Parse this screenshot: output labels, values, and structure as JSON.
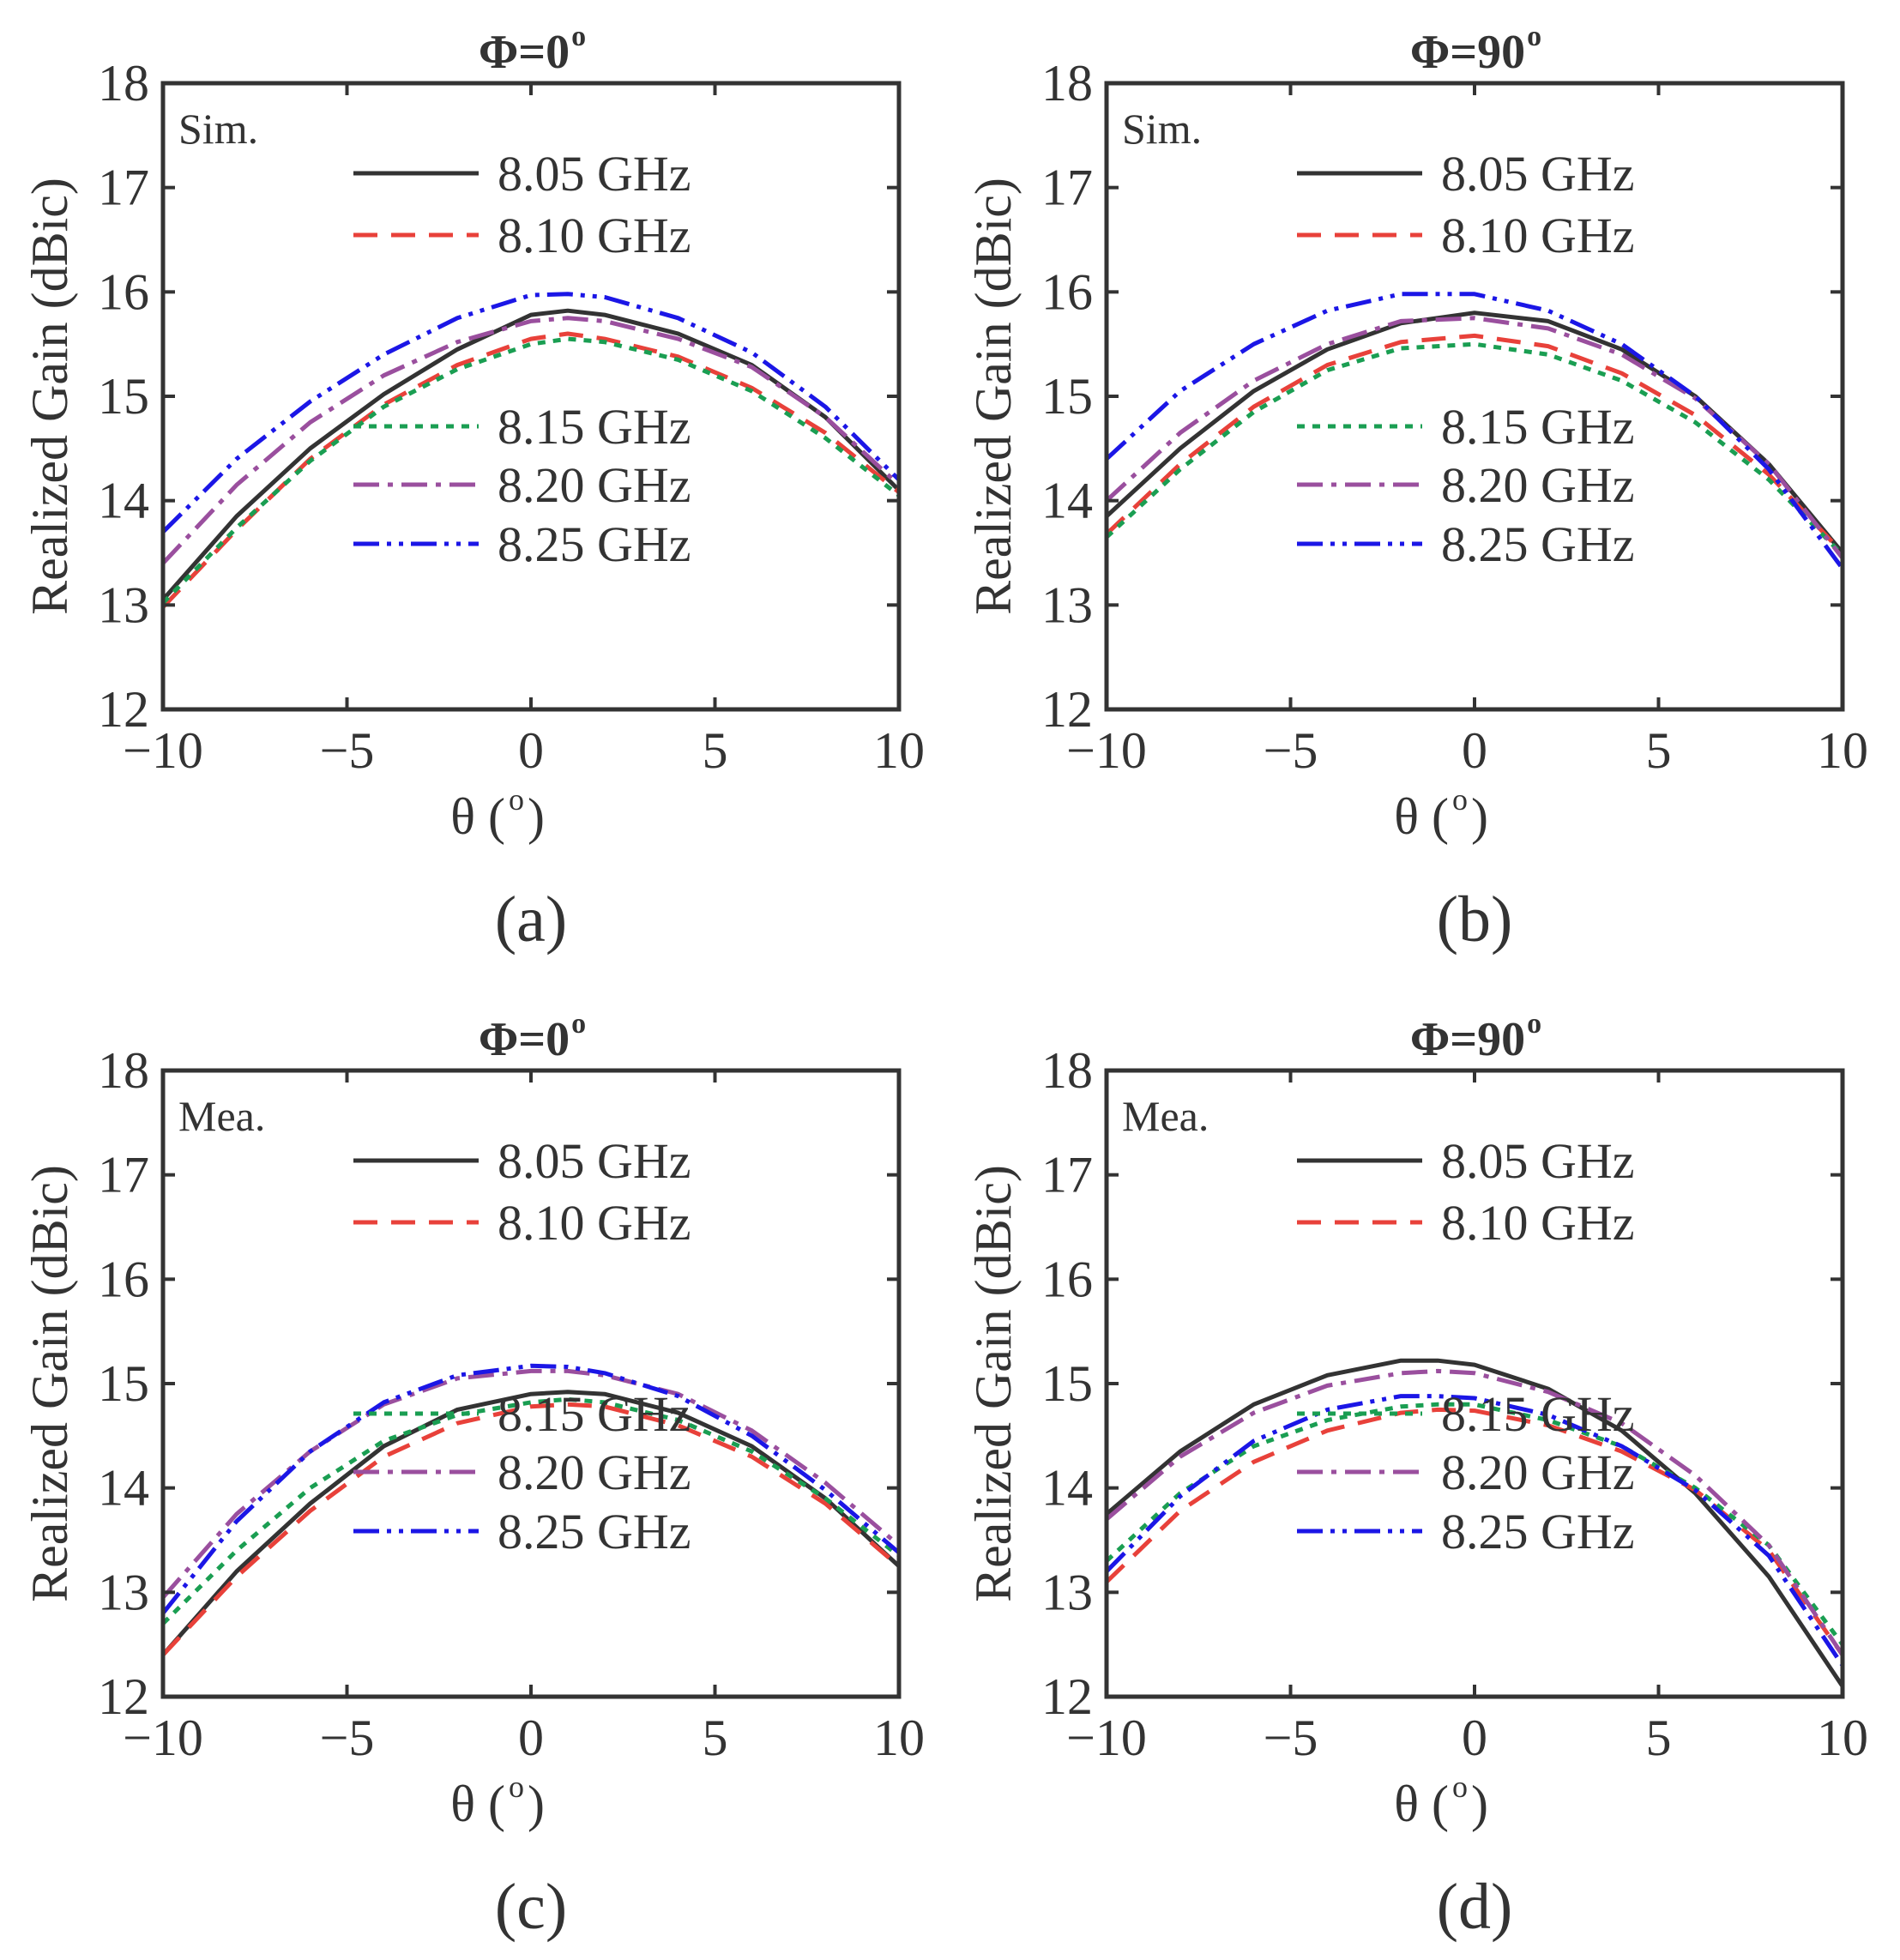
{
  "colors": {
    "s805": "#333333",
    "s810": "#e8413a",
    "s815": "#1a9e52",
    "s820": "#9a4f9e",
    "s825": "#1b16e6",
    "axis": "#333333"
  },
  "chart_data": [
    {
      "type": "line",
      "title": "Φ=0°",
      "title_main": "Φ=0",
      "title_deg": "o",
      "caption": "(a)",
      "tag": "Sim.",
      "xlabel": "θ (°)",
      "xlabel_main": "θ (",
      "xlabel_deg": "o",
      "xlabel_close": ")",
      "ylabel": "Realized Gain (dBic)",
      "xlim": [
        -10,
        10
      ],
      "ylim": [
        12,
        18
      ],
      "xticks": [
        "−10",
        "−5",
        "0",
        "5",
        "10"
      ],
      "yticks": [
        "12",
        "13",
        "14",
        "15",
        "16",
        "17",
        "18"
      ],
      "x": [
        -10,
        -8,
        -6,
        -4,
        -2,
        0,
        1,
        2,
        4,
        6,
        8,
        10
      ],
      "series": [
        {
          "name": "8.05 GHz",
          "style": "solid",
          "values": [
            13.05,
            13.85,
            14.5,
            15.02,
            15.45,
            15.78,
            15.82,
            15.78,
            15.6,
            15.3,
            14.8,
            14.1
          ]
        },
        {
          "name": "8.10 GHz",
          "style": "dashed",
          "values": [
            12.98,
            13.72,
            14.4,
            14.92,
            15.3,
            15.55,
            15.6,
            15.55,
            15.38,
            15.08,
            14.65,
            14.08
          ]
        },
        {
          "name": "8.15 GHz",
          "style": "dotted",
          "values": [
            13.02,
            13.74,
            14.38,
            14.9,
            15.26,
            15.5,
            15.55,
            15.52,
            15.35,
            15.05,
            14.6,
            14.05
          ]
        },
        {
          "name": "8.20 GHz",
          "style": "dashdot",
          "values": [
            13.4,
            14.15,
            14.75,
            15.2,
            15.52,
            15.72,
            15.75,
            15.72,
            15.55,
            15.28,
            14.8,
            14.15
          ]
        },
        {
          "name": "8.25 GHz",
          "style": "dashdotdot",
          "values": [
            13.7,
            14.4,
            14.95,
            15.4,
            15.75,
            15.97,
            15.98,
            15.95,
            15.75,
            15.42,
            14.9,
            14.2
          ]
        }
      ]
    },
    {
      "type": "line",
      "title": "Φ=90°",
      "title_main": "Φ=90",
      "title_deg": "o",
      "caption": "(b)",
      "tag": "Sim.",
      "xlabel": "θ (°)",
      "xlabel_main": "θ (",
      "xlabel_deg": "o",
      "xlabel_close": ")",
      "ylabel": "Realized Gain (dBic)",
      "xlim": [
        -10,
        10
      ],
      "ylim": [
        12,
        18
      ],
      "xticks": [
        "−10",
        "−5",
        "0",
        "5",
        "10"
      ],
      "yticks": [
        "12",
        "13",
        "14",
        "15",
        "16",
        "17",
        "18"
      ],
      "x": [
        -10,
        -8,
        -6,
        -4,
        -2,
        0,
        2,
        4,
        6,
        8,
        10
      ],
      "series": [
        {
          "name": "8.05 GHz",
          "style": "solid",
          "values": [
            13.85,
            14.5,
            15.05,
            15.45,
            15.7,
            15.8,
            15.72,
            15.45,
            15.0,
            14.35,
            13.5
          ]
        },
        {
          "name": "8.10 GHz",
          "style": "dashed",
          "values": [
            13.68,
            14.35,
            14.9,
            15.3,
            15.52,
            15.58,
            15.48,
            15.22,
            14.82,
            14.25,
            13.5
          ]
        },
        {
          "name": "8.15 GHz",
          "style": "dotted",
          "values": [
            13.65,
            14.3,
            14.85,
            15.25,
            15.46,
            15.5,
            15.4,
            15.15,
            14.75,
            14.2,
            13.48
          ]
        },
        {
          "name": "8.20 GHz",
          "style": "dashdot",
          "values": [
            14.0,
            14.65,
            15.15,
            15.5,
            15.72,
            15.75,
            15.65,
            15.4,
            14.98,
            14.35,
            13.45
          ]
        },
        {
          "name": "8.25 GHz",
          "style": "dashdotdot",
          "values": [
            14.4,
            15.05,
            15.5,
            15.82,
            15.98,
            15.98,
            15.82,
            15.5,
            15.0,
            14.3,
            13.35
          ]
        }
      ]
    },
    {
      "type": "line",
      "title": "Φ=0°",
      "title_main": "Φ=0",
      "title_deg": "o",
      "caption": "(c)",
      "tag": "Mea.",
      "xlabel": "θ (°)",
      "xlabel_main": "θ (",
      "xlabel_deg": "o",
      "xlabel_close": ")",
      "ylabel": "Realized Gain (dBic)",
      "xlim": [
        -10,
        10
      ],
      "ylim": [
        12,
        18
      ],
      "xticks": [
        "−10",
        "−5",
        "0",
        "5",
        "10"
      ],
      "yticks": [
        "12",
        "13",
        "14",
        "15",
        "16",
        "17",
        "18"
      ],
      "x": [
        -10,
        -8,
        -6,
        -4,
        -2,
        0,
        1,
        2,
        4,
        6,
        8,
        10
      ],
      "series": [
        {
          "name": "8.05 GHz",
          "style": "solid",
          "values": [
            12.4,
            13.2,
            13.85,
            14.4,
            14.75,
            14.9,
            14.92,
            14.9,
            14.72,
            14.4,
            13.9,
            13.25
          ]
        },
        {
          "name": "8.10 GHz",
          "style": "dashed",
          "values": [
            12.4,
            13.15,
            13.78,
            14.3,
            14.62,
            14.78,
            14.8,
            14.78,
            14.6,
            14.3,
            13.85,
            13.25
          ]
        },
        {
          "name": "8.15 GHz",
          "style": "dotted",
          "values": [
            12.7,
            13.4,
            14.0,
            14.45,
            14.7,
            14.82,
            14.85,
            14.82,
            14.65,
            14.35,
            13.9,
            13.35
          ]
        },
        {
          "name": "8.20 GHz",
          "style": "dashdot",
          "values": [
            12.95,
            13.75,
            14.35,
            14.8,
            15.05,
            15.12,
            15.12,
            15.08,
            14.9,
            14.55,
            14.05,
            13.45
          ]
        },
        {
          "name": "8.25 GHz",
          "style": "dashdotdot",
          "values": [
            12.8,
            13.68,
            14.35,
            14.82,
            15.08,
            15.17,
            15.16,
            15.1,
            14.88,
            14.5,
            13.98,
            13.38
          ]
        }
      ]
    },
    {
      "type": "line",
      "title": "Φ=90°",
      "title_main": "Φ=90",
      "title_deg": "o",
      "caption": "(d)",
      "tag": "Mea.",
      "xlabel": "θ (°)",
      "xlabel_main": "θ (",
      "xlabel_deg": "o",
      "xlabel_close": ")",
      "ylabel": "Realized Gain (dBic)",
      "xlim": [
        -10,
        10
      ],
      "ylim": [
        12,
        18
      ],
      "xticks": [
        "−10",
        "−5",
        "0",
        "5",
        "10"
      ],
      "yticks": [
        "12",
        "13",
        "14",
        "15",
        "16",
        "17",
        "18"
      ],
      "x": [
        -10,
        -8,
        -6,
        -4,
        -2,
        -1,
        0,
        2,
        4,
        6,
        8,
        10
      ],
      "series": [
        {
          "name": "8.05 GHz",
          "style": "solid",
          "values": [
            13.75,
            14.35,
            14.8,
            15.08,
            15.22,
            15.22,
            15.18,
            14.95,
            14.55,
            13.95,
            13.15,
            12.1
          ]
        },
        {
          "name": "8.10 GHz",
          "style": "dashed",
          "values": [
            13.1,
            13.78,
            14.25,
            14.55,
            14.72,
            14.75,
            14.74,
            14.6,
            14.35,
            13.98,
            13.4,
            12.4
          ]
        },
        {
          "name": "8.15 GHz",
          "style": "dotted",
          "values": [
            13.3,
            13.95,
            14.4,
            14.65,
            14.78,
            14.8,
            14.8,
            14.65,
            14.4,
            14.0,
            13.45,
            12.5
          ]
        },
        {
          "name": "8.20 GHz",
          "style": "dashdot",
          "values": [
            13.7,
            14.3,
            14.72,
            14.98,
            15.1,
            15.12,
            15.1,
            14.92,
            14.62,
            14.12,
            13.45,
            12.4
          ]
        },
        {
          "name": "8.25 GHz",
          "style": "dashdotdot",
          "values": [
            13.2,
            13.92,
            14.45,
            14.75,
            14.88,
            14.88,
            14.86,
            14.7,
            14.4,
            13.98,
            13.35,
            12.3
          ]
        }
      ]
    }
  ]
}
